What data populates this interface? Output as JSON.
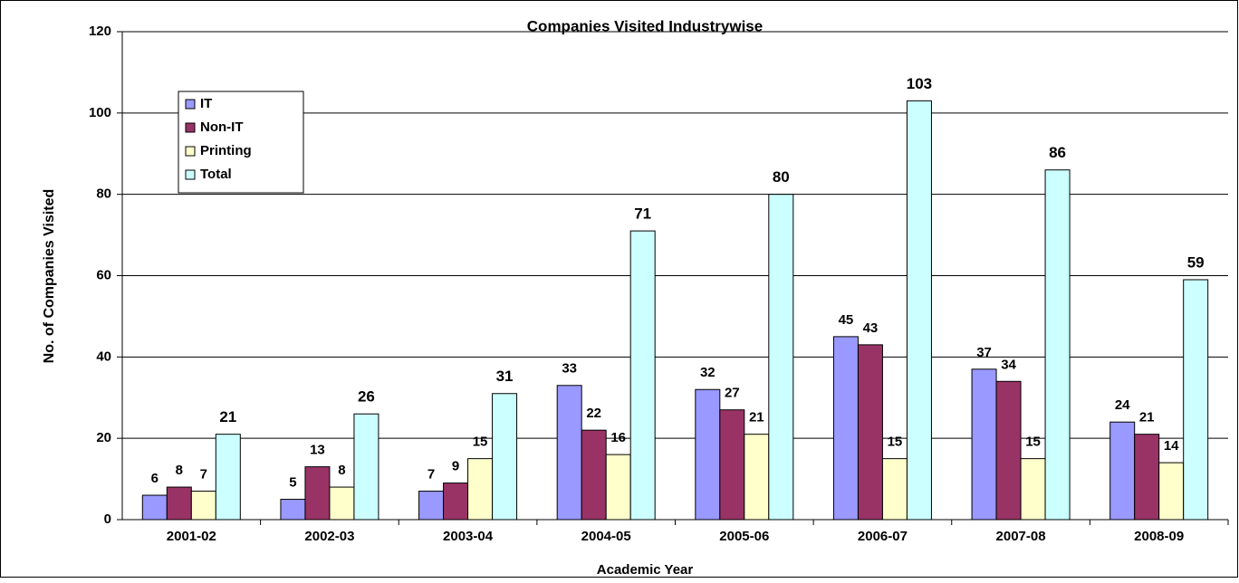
{
  "chart_data": {
    "type": "bar",
    "title": "Companies Visited Industrywise",
    "x_label": "Academic Year",
    "y_label": "No. of Companies Visited",
    "categories": [
      "2001-02",
      "2002-03",
      "2003-04",
      "2004-05",
      "2005-06",
      "2006-07",
      "2007-08",
      "2008-09"
    ],
    "series": [
      {
        "name": "IT",
        "color": "#9999ff",
        "values": [
          6,
          5,
          7,
          33,
          32,
          45,
          37,
          24
        ]
      },
      {
        "name": "Non-IT",
        "color": "#993366",
        "values": [
          8,
          13,
          9,
          22,
          27,
          43,
          34,
          21
        ]
      },
      {
        "name": "Printing",
        "color": "#ffffcc",
        "values": [
          7,
          8,
          15,
          16,
          21,
          15,
          15,
          14
        ]
      },
      {
        "name": "Total",
        "color": "#ccffff",
        "values": [
          21,
          26,
          31,
          71,
          80,
          103,
          86,
          59
        ]
      }
    ],
    "ylim": [
      0,
      120
    ],
    "yticks": [
      0,
      20,
      40,
      60,
      80,
      100,
      120
    ],
    "grid": true,
    "legend": "upper left"
  }
}
